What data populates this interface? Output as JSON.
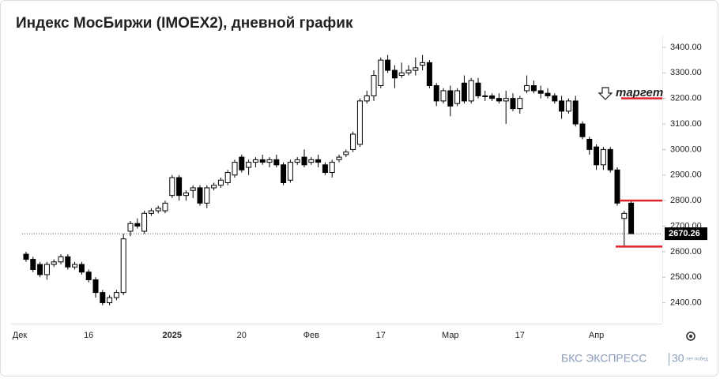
{
  "chart_data": {
    "type": "candlestick",
    "title": "Индекс МосБиржи (IMOEX2), дневной график",
    "categories": [
      "Дек",
      null,
      null,
      null,
      null,
      null,
      null,
      null,
      null,
      "16",
      null,
      null,
      null,
      null,
      null,
      null,
      null,
      null,
      null,
      null,
      null,
      "2025",
      null,
      null,
      null,
      null,
      null,
      null,
      null,
      null,
      null,
      "20",
      null,
      null,
      null,
      null,
      null,
      null,
      null,
      null,
      null,
      "Фев",
      null,
      null,
      null,
      null,
      null,
      null,
      null,
      null,
      null,
      "17",
      null,
      null,
      null,
      null,
      null,
      null,
      null,
      null,
      null,
      "Мар",
      null,
      null,
      null,
      null,
      null,
      null,
      null,
      null,
      null,
      "17",
      null,
      null,
      null,
      null,
      null,
      null,
      null,
      null,
      null,
      null,
      "Апр",
      null,
      null,
      null,
      null,
      null
    ],
    "open": [
      2590,
      2570,
      2550,
      2510,
      2550,
      2560,
      2580,
      2540,
      2550,
      2520,
      2490,
      2440,
      2400,
      2420,
      2440,
      2680,
      2710,
      2680,
      2750,
      2760,
      2760,
      2820,
      2890,
      2820,
      2840,
      2850,
      2790,
      2850,
      2860,
      2870,
      2900,
      2970,
      2930,
      2950,
      2960,
      2950,
      2960,
      2940,
      2880,
      2950,
      2970,
      2950,
      2960,
      2940,
      2910,
      2960,
      2980,
      3000,
      3020,
      3190,
      3210,
      3250,
      3350,
      3310,
      3290,
      3300,
      3310,
      3330,
      3340,
      3250,
      3190,
      3230,
      3180,
      3260,
      3190,
      3260,
      3210,
      3210,
      3200,
      3190,
      3200,
      3160,
      3230,
      3250,
      3230,
      3220,
      3210,
      3190,
      3150,
      3190,
      3100,
      3040,
      3010,
      2940,
      3000,
      2920,
      2730,
      2790
    ],
    "high": [
      2600,
      2580,
      2560,
      2560,
      2570,
      2590,
      2590,
      2560,
      2560,
      2530,
      2500,
      2450,
      2430,
      2450,
      2670,
      2720,
      2730,
      2760,
      2770,
      2780,
      2800,
      2900,
      2900,
      2840,
      2860,
      2860,
      2860,
      2870,
      2890,
      2920,
      2960,
      2980,
      2960,
      2970,
      2980,
      2970,
      2980,
      2950,
      2960,
      2970,
      3000,
      2970,
      2980,
      2950,
      2960,
      2980,
      3000,
      3070,
      3200,
      3230,
      3310,
      3360,
      3370,
      3330,
      3340,
      3330,
      3360,
      3370,
      3350,
      3260,
      3240,
      3250,
      3240,
      3290,
      3280,
      3280,
      3230,
      3220,
      3220,
      3230,
      3220,
      3210,
      3290,
      3270,
      3250,
      3240,
      3220,
      3210,
      3200,
      3210,
      3110,
      3050,
      3020,
      3010,
      3010,
      2930,
      2760,
      2800
    ],
    "low": [
      2560,
      2520,
      2500,
      2490,
      2540,
      2550,
      2530,
      2530,
      2510,
      2480,
      2420,
      2390,
      2390,
      2410,
      2430,
      2660,
      2690,
      2670,
      2740,
      2750,
      2750,
      2810,
      2800,
      2800,
      2810,
      2780,
      2770,
      2840,
      2850,
      2860,
      2890,
      2910,
      2900,
      2930,
      2940,
      2930,
      2930,
      2860,
      2870,
      2940,
      2930,
      2940,
      2930,
      2900,
      2890,
      2950,
      2970,
      2990,
      3010,
      3180,
      3190,
      3240,
      3300,
      3240,
      3280,
      3290,
      3290,
      3310,
      3240,
      3170,
      3180,
      3130,
      3170,
      3180,
      3180,
      3200,
      3190,
      3190,
      3180,
      3100,
      3150,
      3140,
      3220,
      3220,
      3200,
      3200,
      3180,
      3120,
      3140,
      3090,
      3040,
      2980,
      2920,
      2920,
      2910,
      2780,
      2620,
      2670
    ],
    "close": [
      2570,
      2530,
      2510,
      2550,
      2560,
      2580,
      2540,
      2550,
      2520,
      2490,
      2440,
      2400,
      2420,
      2440,
      2650,
      2710,
      2700,
      2750,
      2760,
      2770,
      2790,
      2890,
      2820,
      2830,
      2850,
      2790,
      2850,
      2860,
      2880,
      2910,
      2950,
      2920,
      2950,
      2960,
      2950,
      2960,
      2940,
      2870,
      2950,
      2960,
      2940,
      2960,
      2950,
      2910,
      2950,
      2970,
      2990,
      3060,
      3190,
      3210,
      3290,
      3350,
      3310,
      3280,
      3300,
      3310,
      3320,
      3340,
      3250,
      3190,
      3230,
      3170,
      3230,
      3190,
      3270,
      3210,
      3210,
      3200,
      3190,
      3200,
      3160,
      3200,
      3250,
      3230,
      3220,
      3210,
      3190,
      3150,
      3190,
      3100,
      3050,
      3000,
      2940,
      3000,
      2920,
      2790,
      2750,
      2670.26
    ],
    "up_color": "#ffffff",
    "down_color": "#000000",
    "ylim": [
      2340,
      3440
    ],
    "yticks": [
      {
        "value": 2400,
        "label": "2400.00"
      },
      {
        "value": 2500,
        "label": "2500.00"
      },
      {
        "value": 2600,
        "label": "2600.00"
      },
      {
        "value": 2700,
        "label": "2700.00"
      },
      {
        "value": 2800,
        "label": "2800.00"
      },
      {
        "value": 2900,
        "label": "2900.00"
      },
      {
        "value": 3000,
        "label": "3000.00"
      },
      {
        "value": 3100,
        "label": "3100.00"
      },
      {
        "value": 3200,
        "label": "3200.00"
      },
      {
        "value": 3300,
        "label": "3300.00"
      },
      {
        "value": 3400,
        "label": "3400.00"
      }
    ],
    "last_price": 2670.26,
    "levels": [
      3200,
      2800,
      2620
    ],
    "level_color": "#e3222b",
    "annotation": "таргет",
    "brand": "БКС ЭКСПРЕСС",
    "brand_badge": "30",
    "brand_badge_text": "лет побед"
  }
}
